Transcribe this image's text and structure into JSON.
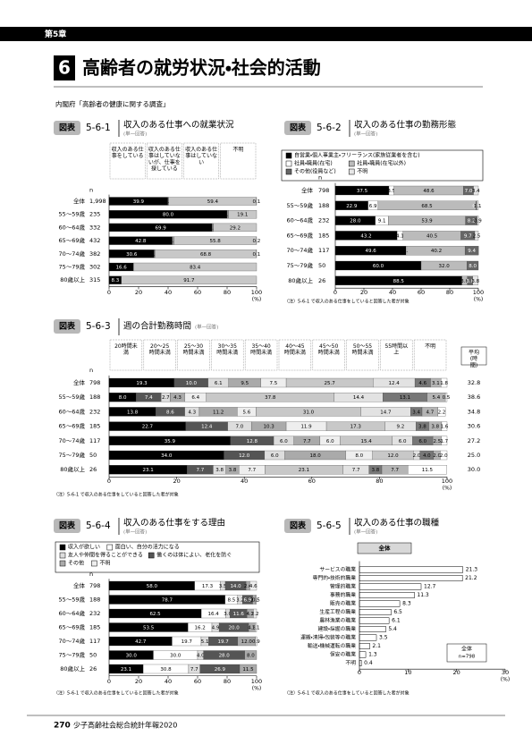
{
  "header": {
    "chapter": "第5章",
    "section_number": "6",
    "section_title": "高齢者の就労状況・社会的活動",
    "source": "内閣府「高齢者の健康に関する調査」"
  },
  "footer": {
    "page": "270",
    "publication": "少子高齢社会総合統計年報2020"
  },
  "chart_data": [
    {
      "type": "stacked_bar_h",
      "label": "図表",
      "number": "5-6-1",
      "title": "収入のある仕事への就業状況",
      "subtitle": "(単一回答)",
      "legend": "columns",
      "n_label": "n",
      "categories": [
        "全体",
        "55～59歳",
        "60～64歳",
        "65～69歳",
        "70～74歳",
        "75～79歳",
        "80歳以上"
      ],
      "n": [
        {
          "value": 1998,
          "label": "1,998"
        },
        235,
        332,
        432,
        382,
        302,
        315
      ],
      "series": [
        {
          "name": "収入のある仕事をしている",
          "color": "#000000",
          "values": [
            39.9,
            80.0,
            69.9,
            42.8,
            30.6,
            16.6,
            8.3
          ],
          "value_labels": [
            "39.9",
            "80.0",
            "69.9",
            "42.8",
            "30.6",
            "16.6",
            "8.3"
          ]
        },
        {
          "name": "収入のある仕事はしていないが、仕事を探している",
          "color": "#999999",
          "values": [
            0.6,
            0.9,
            0.9,
            1.2,
            0.5,
            0.0,
            0.0
          ],
          "value_labels": [
            "0.6",
            "0.9",
            "0.9",
            "1.2",
            "0.5",
            null,
            null
          ]
        },
        {
          "name": "収入のある仕事はしていない",
          "color": "#c8c8c8",
          "values": [
            59.4,
            19.1,
            29.2,
            55.8,
            68.8,
            83.4,
            91.7
          ],
          "value_labels": [
            "59.4",
            "19.1",
            "29.2",
            "55.8",
            "68.8",
            "83.4",
            "91.7"
          ]
        },
        {
          "name": "不明",
          "color": "#eeeeee",
          "values": [
            0.1,
            0.0,
            0.0,
            0.2,
            0.1,
            0.0,
            0.0
          ],
          "value_labels": [
            "0.1",
            null,
            null,
            "0.2",
            "0.1",
            null,
            null
          ]
        }
      ],
      "xlim": [
        0,
        100
      ],
      "xticks": [
        0,
        20,
        40,
        60,
        80,
        100
      ],
      "x_unit": "(%)"
    },
    {
      "type": "stacked_bar_h",
      "label": "図表",
      "number": "5-6-2",
      "title": "収入のある仕事の勤務形態",
      "subtitle": "(単一回答)",
      "legend": "box",
      "n_label": "n",
      "categories": [
        "全体",
        "55～59歳",
        "60～64歳",
        "65～69歳",
        "70～74歳",
        "75～79歳",
        "80歳以上"
      ],
      "n": [
        798,
        188,
        232,
        185,
        117,
        50,
        26
      ],
      "series": [
        {
          "name": "自営業・個人事業主・フリーランス(家族従業者を含む)",
          "color": "#000000",
          "values": [
            37.5,
            22.9,
            28.0,
            43.2,
            49.6,
            60.0,
            88.5
          ],
          "value_labels": [
            "37.5",
            "22.9",
            "28.0",
            "43.2",
            "49.6",
            "60.0",
            "88.5"
          ]
        },
        {
          "name": "社員・職員(在宅)",
          "color": "#ffffff",
          "values": [
            3.5,
            6.9,
            9.1,
            4.1,
            0.9,
            0.0,
            0.0
          ],
          "value_labels": [
            "3.5",
            "6.9",
            "9.1",
            "4.1",
            "0.9",
            null,
            null
          ]
        },
        {
          "name": "社員・職員(在宅以外)",
          "color": "#bbbbbb",
          "values": [
            48.6,
            68.5,
            53.9,
            40.5,
            40.2,
            32.0,
            3.8
          ],
          "value_labels": [
            "48.6",
            "68.5",
            "53.9",
            "40.5",
            "40.2",
            "32.0",
            "3.8"
          ]
        },
        {
          "name": "その他(役員など)",
          "color": "#666666",
          "values": [
            7.0,
            0.6,
            8.2,
            9.7,
            9.4,
            8.0,
            3.8
          ],
          "value_labels": [
            "7.0",
            "0.6",
            "8.2",
            "9.7",
            "9.4",
            "8.0",
            "3.8"
          ]
        },
        {
          "name": "不明",
          "color": "#e6e6e6",
          "values": [
            3.4,
            1.1,
            0.9,
            2.5,
            0.0,
            0.0,
            3.8
          ],
          "value_labels": [
            "3.4",
            "1.1",
            "0.9",
            "2.5",
            null,
            null,
            "3.8"
          ]
        }
      ],
      "xlim": [
        0,
        100
      ],
      "xticks": [
        0,
        20,
        40,
        60,
        80,
        100
      ],
      "x_unit": "(%)",
      "note": "（注）5-6-1 で収入のある仕事をしていると回答した者が対象"
    },
    {
      "type": "stacked_bar_h",
      "label": "図表",
      "number": "5-6-3",
      "title": "週の合計勤務時間",
      "subtitle": "(単一回答)",
      "legend": "columns",
      "n_label": "n",
      "categories": [
        "全体",
        "55～59歳",
        "60～64歳",
        "65～69歳",
        "70～74歳",
        "75～79歳",
        "80歳以上"
      ],
      "n": [
        798,
        188,
        232,
        185,
        117,
        50,
        26
      ],
      "series": [
        {
          "name": "20時間未満",
          "color": "#000000",
          "values": [
            19.3,
            8.0,
            13.8,
            22.7,
            35.9,
            34.0,
            23.1
          ],
          "value_labels": [
            "19.3",
            "8.0",
            "13.8",
            "22.7",
            "35.9",
            "34.0",
            "23.1"
          ]
        },
        {
          "name": "20～25時間未満",
          "color": "#555555",
          "values": [
            10.0,
            7.4,
            8.6,
            12.4,
            12.8,
            12.0,
            7.7
          ],
          "value_labels": [
            "10.0",
            "7.4",
            "8.6",
            "12.4",
            "12.8",
            "12.0",
            "7.7"
          ]
        },
        {
          "name": "25～30時間未満",
          "color": "#dddddd",
          "values": [
            6.1,
            2.7,
            4.3,
            7.0,
            6.0,
            6.0,
            3.8
          ],
          "value_labels": [
            "6.1",
            "2.7",
            "4.3",
            "7.0",
            "6.0",
            "6.0",
            "3.8"
          ]
        },
        {
          "name": "30～35時間未満",
          "color": "#aaaaaa",
          "values": [
            9.5,
            4.3,
            11.2,
            10.3,
            7.7,
            18.0,
            3.8
          ],
          "value_labels": [
            "9.5",
            "4.3",
            "11.2",
            "10.3",
            "7.7",
            "18.0",
            "3.8"
          ]
        },
        {
          "name": "35～40時間未満",
          "color": "#eeeeee",
          "values": [
            7.5,
            6.4,
            5.6,
            11.9,
            6.0,
            8.0,
            7.7
          ],
          "value_labels": [
            "7.5",
            "6.4",
            "5.6",
            "11.9",
            "6.0",
            "8.0",
            "7.7"
          ]
        },
        {
          "name": "40～45時間未満",
          "color": "#c8c8c8",
          "values": [
            25.7,
            37.8,
            31.0,
            17.3,
            15.4,
            12.0,
            23.1
          ],
          "value_labels": [
            "25.7",
            "37.8",
            "31.0",
            "17.3",
            "15.4",
            "12.0",
            "23.1"
          ]
        },
        {
          "name": "45～50時間未満",
          "color": "#e2e2e2",
          "values": [
            12.4,
            14.4,
            14.7,
            9.2,
            6.0,
            2.0,
            7.7
          ],
          "value_labels": [
            "12.4",
            "14.4",
            "14.7",
            "9.2",
            "6.0",
            "2.0",
            "7.7"
          ]
        },
        {
          "name": "50～55時間未満",
          "color": "#777777",
          "values": [
            4.6,
            13.1,
            3.4,
            3.8,
            6.0,
            4.0,
            3.8
          ],
          "value_labels": [
            "4.6",
            "13.1",
            "3.4",
            "3.8",
            "6.0",
            "4.0",
            "3.8"
          ]
        },
        {
          "name": "55時間以上",
          "color": "#b5b5b5",
          "values": [
            3.1,
            5.4,
            4.7,
            3.8,
            2.5,
            2.0,
            7.7
          ],
          "value_labels": [
            "3.1",
            "5.4",
            "4.7",
            "3.8",
            "2.5",
            "2.0",
            "7.7"
          ]
        },
        {
          "name": "不明",
          "color": "#ffffff",
          "values": [
            1.8,
            0.5,
            2.2,
            1.6,
            1.7,
            2.0,
            11.5
          ],
          "value_labels": [
            "1.8",
            "0.5",
            "2.2",
            "1.6",
            "1.7",
            "2.0",
            "11.5"
          ]
        }
      ],
      "average_label": "平均(時間)",
      "averages": [
        "32.8",
        "38.6",
        "34.8",
        "30.6",
        "27.2",
        "25.0",
        "30.0"
      ],
      "xlim": [
        0,
        100
      ],
      "xticks": [
        0,
        20,
        40,
        60,
        80,
        100
      ],
      "x_unit": "(%)",
      "note": "（注）5-6-1 で収入のある仕事をしていると回答した者が対象"
    },
    {
      "type": "stacked_bar_h",
      "label": "図表",
      "number": "5-6-4",
      "title": "収入のある仕事をする理由",
      "subtitle": "(単一回答)",
      "legend": "box",
      "n_label": "n",
      "categories": [
        "全体",
        "55～59歳",
        "60～64歳",
        "65～69歳",
        "70～74歳",
        "75～79歳",
        "80歳以上"
      ],
      "n": [
        798,
        188,
        232,
        185,
        117,
        50,
        26
      ],
      "series": [
        {
          "name": "収入が欲しい",
          "color": "#000000",
          "values": [
            58.0,
            78.7,
            62.5,
            53.5,
            42.7,
            30.0,
            23.1
          ],
          "value_labels": [
            "58.0",
            "78.7",
            "62.5",
            "53.5",
            "42.7",
            "30.0",
            "23.1"
          ]
        },
        {
          "name": "面白い、自分の活力になる",
          "color": "#ffffff",
          "values": [
            17.3,
            8.5,
            16.4,
            16.2,
            19.7,
            30.0,
            30.8
          ],
          "value_labels": [
            "17.3",
            "8.5",
            "16.4",
            "16.2",
            "19.7",
            "30.0",
            "30.8"
          ]
        },
        {
          "name": "友人や仲間を得ることができる",
          "color": "#dddddd",
          "values": [
            3.5,
            3.2,
            3.0,
            4.9,
            5.1,
            4.0,
            7.7
          ],
          "value_labels": [
            "3.5",
            "3.2",
            "3.0",
            "4.9",
            "5.1",
            "4.0",
            "7.7"
          ]
        },
        {
          "name": "働くのは体によい、老化を防ぐ",
          "color": "#555555",
          "values": [
            14.0,
            6.9,
            11.6,
            20.0,
            19.7,
            28.0,
            26.9
          ],
          "value_labels": [
            "14.0",
            "6.9",
            "11.6",
            "20.0",
            "19.7",
            "28.0",
            "26.9"
          ]
        },
        {
          "name": "その他",
          "color": "#aaaaaa",
          "values": [
            2.6,
            2.1,
            4.3,
            4.3,
            12.0,
            8.0,
            11.5
          ],
          "value_labels": [
            "2.6",
            "2.1",
            "4.3",
            "4.3",
            "12.0",
            "8.0",
            "11.5"
          ]
        },
        {
          "name": "不明",
          "color": "#eeeeee",
          "values": [
            4.6,
            0.5,
            2.2,
            1.1,
            0.9,
            0.0,
            0.0
          ],
          "value_labels": [
            "4.6",
            "0.5",
            "2.2",
            "1.1",
            "0.9",
            null,
            null
          ]
        }
      ],
      "xlim": [
        0,
        100
      ],
      "xticks": [
        0,
        20,
        40,
        60,
        80,
        100
      ],
      "x_unit": "(%)",
      "note": "（注）5-6-1 で収入のある仕事をしていると回答した者が対象"
    },
    {
      "type": "bar_h",
      "label": "図表",
      "number": "5-6-5",
      "title": "収入のある仕事の職種",
      "subtitle": "(単一回答)",
      "group_label": "全体",
      "categories": [
        "サービスの職業",
        "専門的・技術的職業",
        "管理的職業",
        "事務的職業",
        "販売の職業",
        "生産工程の職業",
        "農林漁業の職業",
        "建設・採掘の職業",
        "運搬・清掃・包装等の職業",
        "輸送・機械運転の職業",
        "保安の職業",
        "不明"
      ],
      "values": [
        21.3,
        21.2,
        12.7,
        11.3,
        8.3,
        6.5,
        6.1,
        5.4,
        3.5,
        2.1,
        1.3,
        0.4
      ],
      "color": "#ffffff",
      "legend_label": "全体",
      "legend_n": "n=798",
      "xlim": [
        0,
        30
      ],
      "xticks": [
        0,
        10,
        20,
        30
      ],
      "x_unit": "(%)",
      "note": "（注）5-6-1 で収入のある仕事をしていると回答した者が対象"
    }
  ]
}
